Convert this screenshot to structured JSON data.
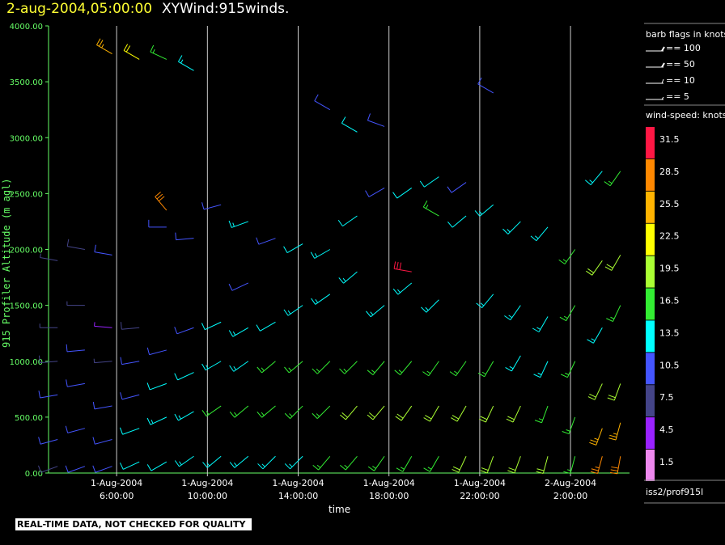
{
  "header": {
    "date_label": "2-aug-2004,05:00:00",
    "plot_name": "XYWind:915winds."
  },
  "footer": {
    "quality_note": "REAL-TIME DATA, NOT CHECKED FOR QUALITY",
    "source_label": "iss2/prof915l"
  },
  "legend": {
    "barb_title": "barb flags in knots",
    "barb_items": [
      {
        "label": "== 100",
        "knots": 100
      },
      {
        "label": "== 50",
        "knots": 50
      },
      {
        "label": "== 10",
        "knots": 10
      },
      {
        "label": "== 5",
        "knots": 5
      }
    ],
    "speed_title": "wind-speed: knots",
    "speed_bins": [
      {
        "label": "31.5",
        "color": "#ff1744"
      },
      {
        "label": "28.5",
        "color": "#ff8800"
      },
      {
        "label": "25.5",
        "color": "#ffb300"
      },
      {
        "label": "22.5",
        "color": "#ffff00"
      },
      {
        "label": "19.5",
        "color": "#aaff33"
      },
      {
        "label": "16.5",
        "color": "#33ee33"
      },
      {
        "label": "13.5",
        "color": "#00ffff"
      },
      {
        "label": "10.5",
        "color": "#4455ff"
      },
      {
        "label": "7.5",
        "color": "#444488"
      },
      {
        "label": "4.5",
        "color": "#9922ff"
      },
      {
        "label": "1.5",
        "color": "#ee88ee"
      }
    ]
  },
  "chart_data": {
    "type": "scatter",
    "title": "XYWind:915winds.",
    "xlabel": "time",
    "ylabel": "915 Profiler Altitude (m agl)",
    "xlim_hours": [
      3.0,
      28.6
    ],
    "ylim": [
      0,
      4000
    ],
    "y_ticks": [
      "0.00",
      "500.00",
      "1000.00",
      "1500.00",
      "2000.00",
      "2500.00",
      "3000.00",
      "3500.00",
      "4000.00"
    ],
    "x_ticks": [
      {
        "date": "1-Aug-2004",
        "time": "6:00:00",
        "hour": 6
      },
      {
        "date": "1-Aug-2004",
        "time": "10:00:00",
        "hour": 10
      },
      {
        "date": "1-Aug-2004",
        "time": "14:00:00",
        "hour": 14
      },
      {
        "date": "1-Aug-2004",
        "time": "18:00:00",
        "hour": 18
      },
      {
        "date": "1-Aug-2004",
        "time": "22:00:00",
        "hour": 22
      },
      {
        "date": "2-Aug-2004",
        "time": "2:00:00",
        "hour": 26
      }
    ],
    "vertical_gridlines": true,
    "barbs": [
      [
        3.4,
        60,
        8,
        250
      ],
      [
        3.4,
        300,
        9,
        255
      ],
      [
        3.4,
        700,
        10,
        260
      ],
      [
        3.4,
        1000,
        8,
        265
      ],
      [
        3.4,
        1300,
        6,
        270
      ],
      [
        3.4,
        1900,
        6,
        280
      ],
      [
        4.6,
        60,
        9,
        250
      ],
      [
        4.6,
        400,
        9,
        255
      ],
      [
        4.6,
        800,
        10,
        260
      ],
      [
        4.6,
        1100,
        9,
        265
      ],
      [
        4.6,
        1500,
        7,
        270
      ],
      [
        4.6,
        2000,
        8,
        280
      ],
      [
        5.8,
        60,
        10,
        250
      ],
      [
        5.8,
        300,
        10,
        255
      ],
      [
        5.8,
        600,
        11,
        260
      ],
      [
        5.8,
        1000,
        7,
        265
      ],
      [
        5.8,
        1300,
        5,
        275
      ],
      [
        5.8,
        1950,
        9,
        280
      ],
      [
        5.8,
        3750,
        24,
        300
      ],
      [
        7.0,
        100,
        12,
        245
      ],
      [
        7.0,
        400,
        12,
        250
      ],
      [
        7.0,
        700,
        11,
        255
      ],
      [
        7.0,
        1000,
        10,
        260
      ],
      [
        7.0,
        1300,
        8,
        265
      ],
      [
        7.0,
        3700,
        22,
        300
      ],
      [
        8.2,
        100,
        12,
        240
      ],
      [
        8.2,
        500,
        13,
        245
      ],
      [
        8.2,
        800,
        12,
        250
      ],
      [
        8.2,
        1100,
        11,
        255
      ],
      [
        8.2,
        2200,
        10,
        270
      ],
      [
        8.2,
        2350,
        29,
        320
      ],
      [
        8.2,
        3700,
        16,
        295
      ],
      [
        9.4,
        150,
        14,
        235
      ],
      [
        9.4,
        550,
        14,
        240
      ],
      [
        9.4,
        900,
        12,
        245
      ],
      [
        9.4,
        1300,
        11,
        250
      ],
      [
        9.4,
        2100,
        10,
        265
      ],
      [
        9.4,
        3600,
        13,
        300
      ],
      [
        10.6,
        150,
        14,
        230
      ],
      [
        10.6,
        600,
        15,
        235
      ],
      [
        10.6,
        1000,
        13,
        240
      ],
      [
        10.6,
        1350,
        12,
        245
      ],
      [
        10.6,
        2400,
        10,
        255
      ],
      [
        11.8,
        150,
        14,
        230
      ],
      [
        11.8,
        600,
        15,
        230
      ],
      [
        11.8,
        1000,
        14,
        235
      ],
      [
        11.8,
        1300,
        13,
        240
      ],
      [
        11.8,
        1700,
        10,
        245
      ],
      [
        11.8,
        2250,
        13,
        250
      ],
      [
        13.0,
        150,
        14,
        225
      ],
      [
        13.0,
        600,
        16,
        230
      ],
      [
        13.0,
        1000,
        15,
        230
      ],
      [
        13.0,
        1350,
        12,
        240
      ],
      [
        13.0,
        2100,
        11,
        250
      ],
      [
        14.2,
        150,
        14,
        225
      ],
      [
        14.2,
        600,
        16,
        225
      ],
      [
        14.2,
        1000,
        15,
        230
      ],
      [
        14.2,
        1500,
        13,
        235
      ],
      [
        14.2,
        2050,
        12,
        240
      ],
      [
        15.4,
        150,
        16,
        220
      ],
      [
        15.4,
        600,
        17,
        225
      ],
      [
        15.4,
        1000,
        16,
        225
      ],
      [
        15.4,
        1600,
        14,
        235
      ],
      [
        15.4,
        2000,
        13,
        240
      ],
      [
        15.4,
        3250,
        10,
        300
      ],
      [
        16.6,
        150,
        16,
        220
      ],
      [
        16.6,
        600,
        18,
        220
      ],
      [
        16.6,
        1000,
        17,
        225
      ],
      [
        16.6,
        1800,
        14,
        230
      ],
      [
        16.6,
        2300,
        12,
        235
      ],
      [
        16.6,
        3050,
        12,
        300
      ],
      [
        17.8,
        150,
        16,
        215
      ],
      [
        17.8,
        600,
        18,
        220
      ],
      [
        17.8,
        1000,
        17,
        220
      ],
      [
        17.8,
        1500,
        13,
        230
      ],
      [
        17.8,
        2550,
        11,
        240
      ],
      [
        17.8,
        3100,
        11,
        290
      ],
      [
        19.0,
        150,
        17,
        210
      ],
      [
        19.0,
        600,
        19,
        215
      ],
      [
        19.0,
        1000,
        17,
        220
      ],
      [
        19.0,
        1700,
        14,
        230
      ],
      [
        19.0,
        2550,
        12,
        235
      ],
      [
        19.0,
        1800,
        32,
        280
      ],
      [
        20.2,
        150,
        17,
        210
      ],
      [
        20.2,
        600,
        19,
        210
      ],
      [
        20.2,
        1000,
        17,
        215
      ],
      [
        20.2,
        1550,
        13,
        225
      ],
      [
        20.2,
        2650,
        12,
        235
      ],
      [
        20.2,
        2300,
        15,
        300
      ],
      [
        21.4,
        150,
        18,
        205
      ],
      [
        21.4,
        600,
        19,
        210
      ],
      [
        21.4,
        1000,
        16,
        215
      ],
      [
        21.4,
        2300,
        12,
        230
      ],
      [
        21.4,
        2600,
        10,
        235
      ],
      [
        22.6,
        150,
        18,
        200
      ],
      [
        22.6,
        600,
        19,
        205
      ],
      [
        22.6,
        1000,
        15,
        210
      ],
      [
        22.6,
        1600,
        13,
        220
      ],
      [
        22.6,
        2400,
        14,
        230
      ],
      [
        22.6,
        3400,
        10,
        300
      ],
      [
        23.8,
        150,
        18,
        200
      ],
      [
        23.8,
        600,
        18,
        205
      ],
      [
        23.8,
        1050,
        14,
        210
      ],
      [
        23.8,
        1500,
        13,
        215
      ],
      [
        23.8,
        2250,
        14,
        225
      ],
      [
        25.0,
        150,
        18,
        195
      ],
      [
        25.0,
        600,
        17,
        200
      ],
      [
        25.0,
        1000,
        14,
        205
      ],
      [
        25.0,
        1400,
        13,
        210
      ],
      [
        25.0,
        2200,
        14,
        220
      ],
      [
        26.2,
        150,
        17,
        195
      ],
      [
        26.2,
        500,
        17,
        200
      ],
      [
        26.2,
        1000,
        15,
        205
      ],
      [
        26.2,
        1500,
        15,
        210
      ],
      [
        26.2,
        2000,
        15,
        215
      ],
      [
        27.4,
        150,
        27,
        195
      ],
      [
        27.4,
        400,
        25,
        200
      ],
      [
        27.4,
        800,
        19,
        205
      ],
      [
        27.4,
        1300,
        14,
        210
      ],
      [
        27.4,
        1900,
        18,
        215
      ],
      [
        27.4,
        2700,
        14,
        220
      ],
      [
        28.2,
        150,
        29,
        190
      ],
      [
        28.2,
        450,
        26,
        195
      ],
      [
        28.2,
        800,
        20,
        200
      ],
      [
        28.2,
        1500,
        15,
        205
      ],
      [
        28.2,
        1950,
        18,
        210
      ],
      [
        28.2,
        2700,
        15,
        215
      ]
    ]
  }
}
